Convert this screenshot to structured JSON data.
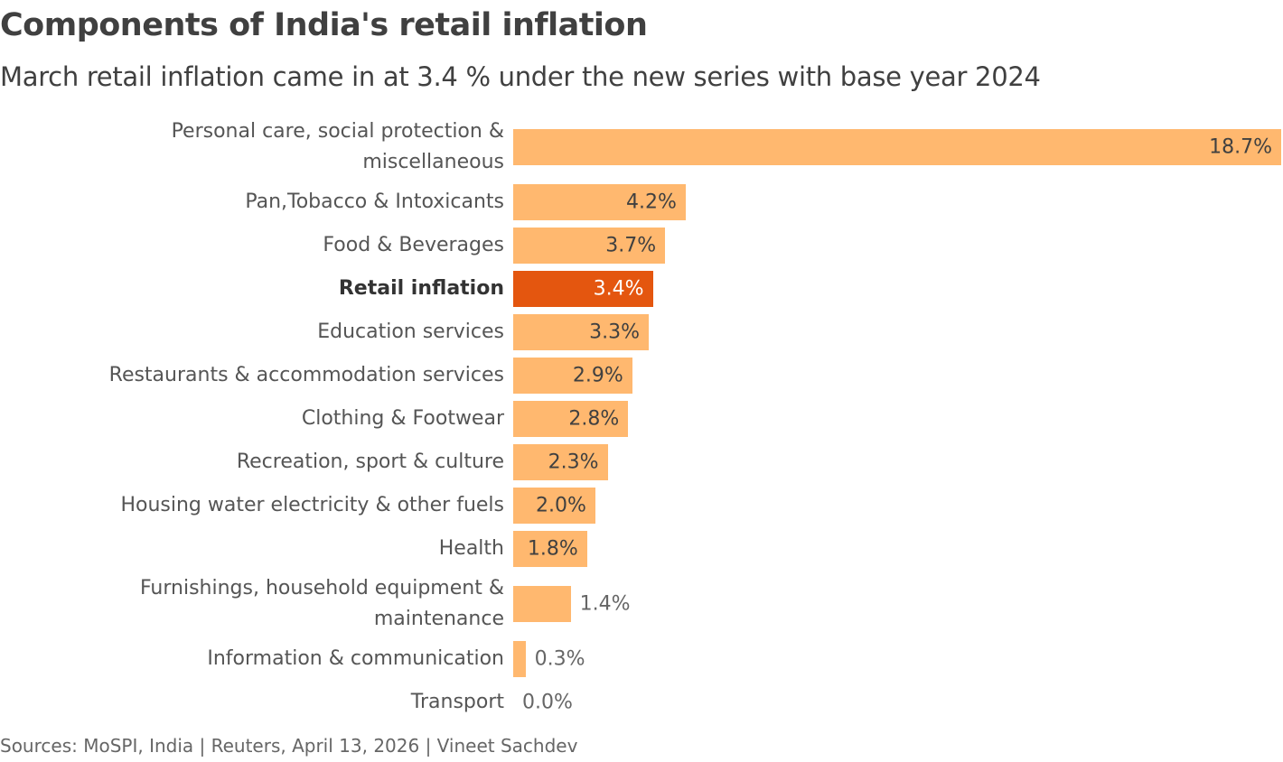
{
  "title": "Components of India's retail inflation",
  "subtitle": "March retail inflation came in at 3.4 % under the new series with base year 2024",
  "source": "Sources: MoSPI, India | Reuters, April 13, 2026 | Vineet Sachdev",
  "colors": {
    "bar": "#ffb86f",
    "highlight": "#e4560f"
  },
  "chart_data": {
    "type": "bar",
    "orientation": "horizontal",
    "title": "Components of India's retail inflation",
    "subtitle": "March retail inflation came in at 3.4 % under the new series with base year 2024",
    "categories": [
      "Personal care, social protection & miscellaneous",
      "Pan,Tobacco & Intoxicants",
      "Food & Beverages",
      "Retail inflation",
      "Education services",
      "Restaurants & accommodation services",
      "Clothing & Footwear",
      "Recreation, sport & culture",
      "Housing water electricity & other fuels",
      "Health",
      "Furnishings, household equipment & maintenance",
      "Information & communication",
      "Transport"
    ],
    "values": [
      18.7,
      4.2,
      3.7,
      3.4,
      3.3,
      2.9,
      2.8,
      2.3,
      2.0,
      1.8,
      1.4,
      0.3,
      0.0
    ],
    "labels": [
      "18.7%",
      "4.2%",
      "3.7%",
      "3.4%",
      "3.3%",
      "2.9%",
      "2.8%",
      "2.3%",
      "2.0%",
      "1.8%",
      "1.4%",
      "0.3%",
      "0.0%"
    ],
    "highlight": "Retail inflation",
    "xlim": [
      0,
      18.7
    ],
    "grid": false,
    "legend": "none"
  }
}
